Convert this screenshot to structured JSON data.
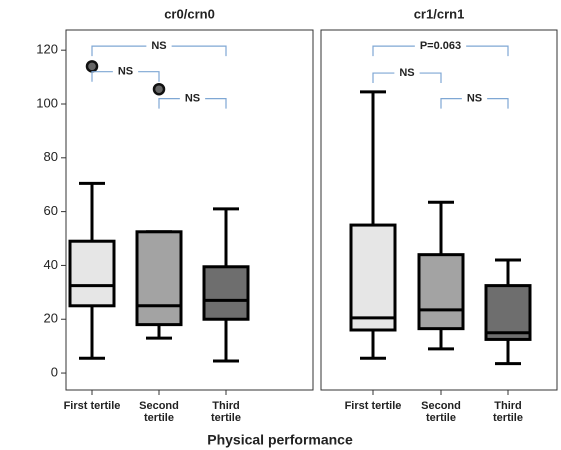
{
  "chart_data": {
    "type": "box",
    "xlabel": "Physical performance",
    "ylim": [
      -6.3,
      127.5
    ],
    "yticks": [
      0,
      20,
      40,
      60,
      80,
      100,
      120
    ],
    "categories": [
      "First tertile",
      "Second tertile",
      "Third tertile"
    ],
    "colors": [
      "#e6e6e6",
      "#a3a3a3",
      "#6e6e6e"
    ],
    "panels": [
      {
        "title": "cr0/crn0",
        "boxes": [
          {
            "min": 5.5,
            "q1": 25,
            "median": 32.5,
            "q3": 49,
            "max": 70.5,
            "outliers": [
              114
            ]
          },
          {
            "min": 13,
            "q1": 18,
            "median": 25,
            "q3": 52.5,
            "max": 52.5,
            "outliers": [
              105.5
            ]
          },
          {
            "min": 4.5,
            "q1": 20,
            "median": 27,
            "q3": 39.5,
            "max": 61,
            "outliers": []
          }
        ],
        "annotations": [
          {
            "text": "NS",
            "from": 0,
            "to": 2,
            "y": 121.5
          },
          {
            "text": "NS",
            "from": 0,
            "to": 1,
            "y": 112
          },
          {
            "text": "NS",
            "from": 1,
            "to": 2,
            "y": 102
          }
        ]
      },
      {
        "title": "cr1/crn1",
        "boxes": [
          {
            "min": 5.5,
            "q1": 16,
            "median": 20.5,
            "q3": 55,
            "max": 104.5,
            "outliers": []
          },
          {
            "min": 9,
            "q1": 16.5,
            "median": 23.5,
            "q3": 44,
            "max": 63.5,
            "outliers": []
          },
          {
            "min": 3.5,
            "q1": 12.5,
            "median": 15,
            "q3": 32.5,
            "max": 42,
            "outliers": []
          }
        ],
        "annotations": [
          {
            "text": "P=0.063",
            "from": 0,
            "to": 2,
            "y": 121.5
          },
          {
            "text": "NS",
            "from": 0,
            "to": 1,
            "y": 111.5
          },
          {
            "text": "NS",
            "from": 1,
            "to": 2,
            "y": 102
          }
        ]
      }
    ]
  }
}
